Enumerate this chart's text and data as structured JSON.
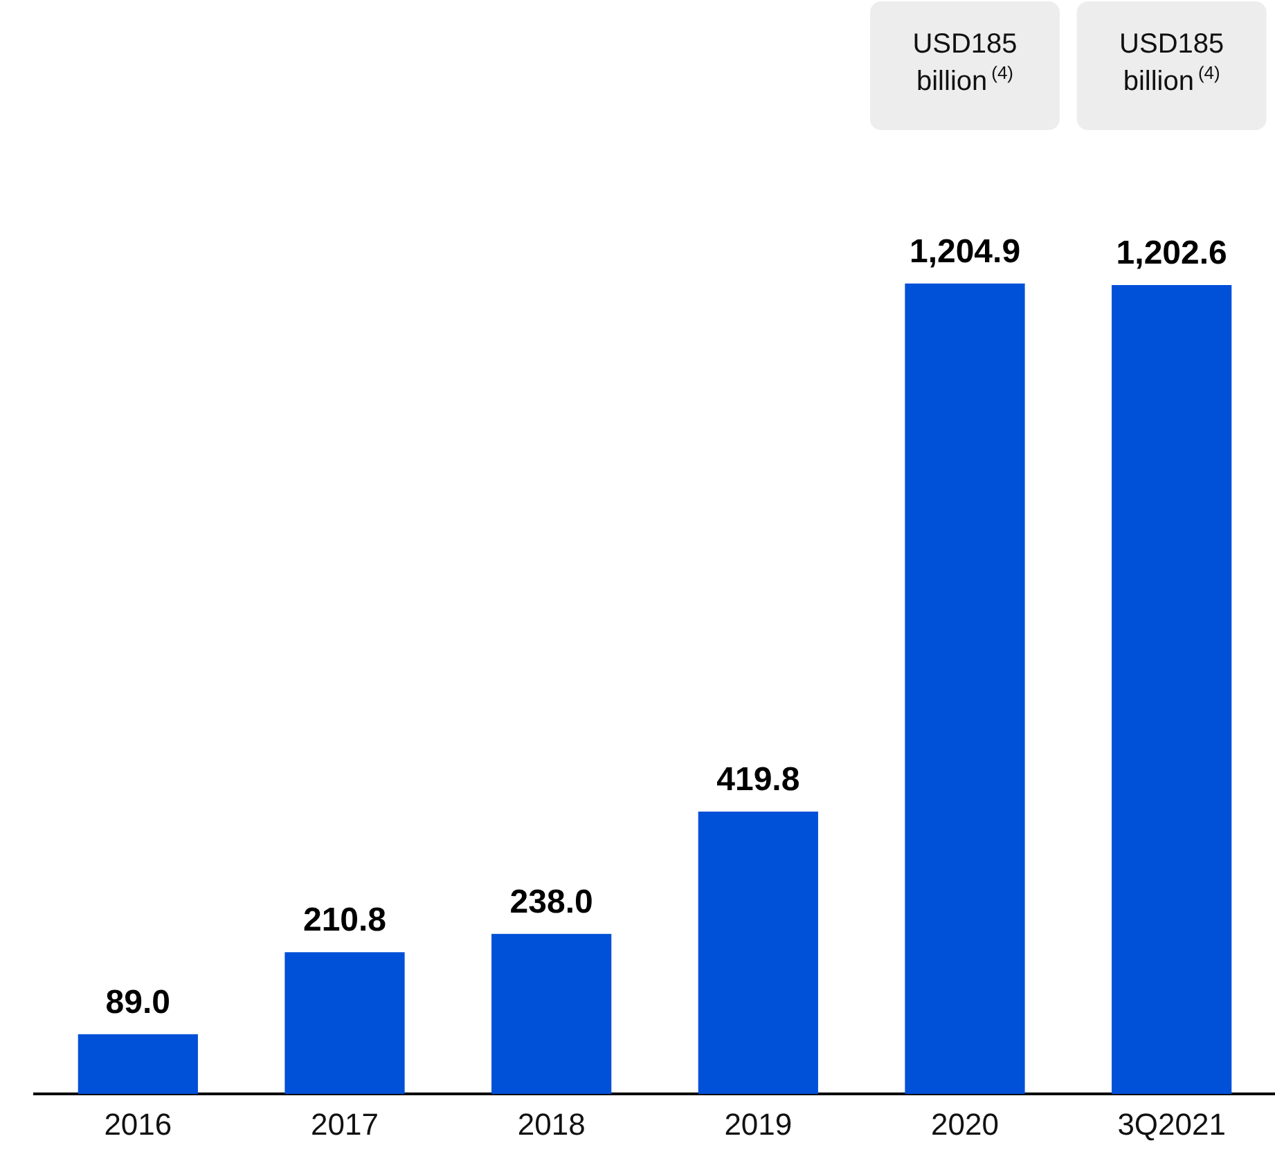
{
  "chart_data": {
    "type": "bar",
    "categories": [
      "2016",
      "2017",
      "2018",
      "2019",
      "2020",
      "3Q2021"
    ],
    "values": [
      89.0,
      210.8,
      238.0,
      419.8,
      1204.9,
      1202.6
    ],
    "value_labels": [
      "89.0",
      "210.8",
      "238.0",
      "419.8",
      "1,204.9",
      "1,202.6"
    ],
    "color": "#0050d8",
    "legend": false,
    "annotations": [
      "USD185\nbillion$^{(4)}$",
      "USD185\nbillion$^{(4)}$"
    ]
  }
}
